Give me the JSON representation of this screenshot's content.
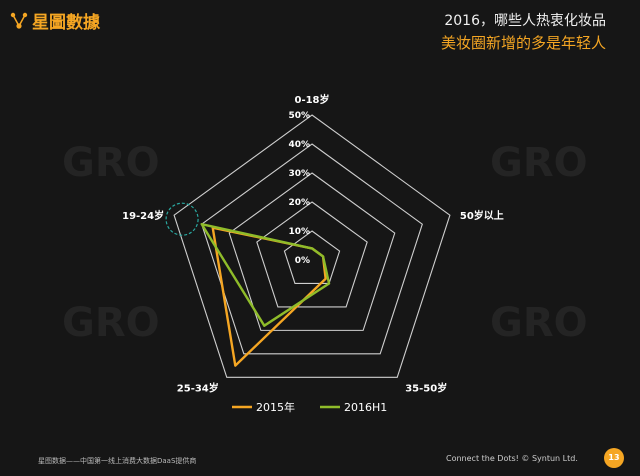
{
  "brand": {
    "logo_text": "星圖數據"
  },
  "header": {
    "title": "2016，哪些人热衷化妆品",
    "subtitle": "美妆圈新增的多是年轻人"
  },
  "footer": {
    "left_text": "星图数据——中国第一线上消费大数据DaaS提供商",
    "right_text": "Connect the Dots!  © Syntun Ltd.",
    "page_number": "13"
  },
  "watermark": {
    "text": "GRO"
  },
  "colors": {
    "accent": "#f5a623",
    "series_2015": "#f5a623",
    "series_2016h1": "#8fbc2a",
    "grid": "#cfcfcf",
    "highlight": "#2aa8a0"
  },
  "chart_data": {
    "type": "radar",
    "categories": [
      "0-18岁",
      "50岁以上",
      "35-50岁",
      "25-34岁",
      "19-24岁"
    ],
    "tick_labels": [
      "0%",
      "10%",
      "20%",
      "30%",
      "40%",
      "50%"
    ],
    "range": [
      0,
      50
    ],
    "grid": true,
    "legend_position": "bottom",
    "highlighted_category": "19-24岁",
    "series": [
      {
        "name": "2015年",
        "values": [
          4,
          4,
          8,
          45,
          36
        ]
      },
      {
        "name": "2016H1",
        "values": [
          4,
          4,
          10,
          28,
          40
        ]
      }
    ]
  }
}
